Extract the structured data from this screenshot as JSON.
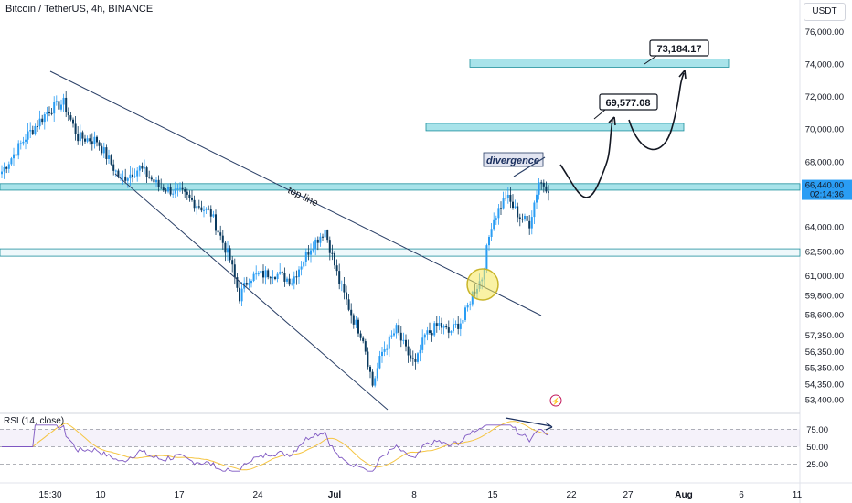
{
  "header": {
    "title": "Bitcoin / TetherUS, 4h, BINANCE",
    "currency": "USDT"
  },
  "colors": {
    "up": "#2a9df4",
    "down": "#0b3a5e",
    "zone_fill": "#a8e3ea",
    "zone_stroke": "#1b8e9c",
    "rsi_line": "#7e57c2",
    "rsi_ma": "#f5c542",
    "price_label_bg": "#2a9df4",
    "arrow": "#131722"
  },
  "chart_data": [
    {
      "type": "candlestick",
      "title": "Bitcoin / TetherUS, 4h, BINANCE",
      "x_ticks": [
        "15:30",
        "10",
        "17",
        "24",
        "Jul",
        "8",
        "15",
        "22",
        "27",
        "Aug",
        "6",
        "11"
      ],
      "y_ticks": [
        76000,
        74000,
        72000,
        70000,
        68000,
        66440,
        64000,
        62500,
        61000,
        59800,
        58600,
        57350,
        56350,
        55350,
        54350,
        53400
      ],
      "y_tick_labels": [
        "76,000.00",
        "74,000.00",
        "72,000.00",
        "70,000.00",
        "68,000.00",
        "64,000.00",
        "62,500.00",
        "61,000.00",
        "59,800.00",
        "58,600.00",
        "57,350.00",
        "56,350.00",
        "55,350.00",
        "54,350.00",
        "53,400.00"
      ],
      "current_price": "66,440.00",
      "countdown": "02:14:36",
      "path_keypoints": [
        {
          "i": 0,
          "p": 67400
        },
        {
          "i": 10,
          "p": 69500
        },
        {
          "i": 20,
          "p": 71200
        },
        {
          "i": 26,
          "p": 71600
        },
        {
          "i": 32,
          "p": 69500
        },
        {
          "i": 40,
          "p": 69300
        },
        {
          "i": 50,
          "p": 66900
        },
        {
          "i": 58,
          "p": 67600
        },
        {
          "i": 66,
          "p": 66500
        },
        {
          "i": 76,
          "p": 66000
        },
        {
          "i": 88,
          "p": 64800
        },
        {
          "i": 96,
          "p": 62000
        },
        {
          "i": 100,
          "p": 59700
        },
        {
          "i": 104,
          "p": 60900
        },
        {
          "i": 114,
          "p": 61200
        },
        {
          "i": 122,
          "p": 60700
        },
        {
          "i": 130,
          "p": 62800
        },
        {
          "i": 136,
          "p": 63800
        },
        {
          "i": 142,
          "p": 60600
        },
        {
          "i": 148,
          "p": 58300
        },
        {
          "i": 152,
          "p": 57200
        },
        {
          "i": 156,
          "p": 54300
        },
        {
          "i": 160,
          "p": 56300
        },
        {
          "i": 166,
          "p": 57700
        },
        {
          "i": 170,
          "p": 56400
        },
        {
          "i": 174,
          "p": 55500
        },
        {
          "i": 178,
          "p": 57300
        },
        {
          "i": 184,
          "p": 58000
        },
        {
          "i": 188,
          "p": 57500
        },
        {
          "i": 194,
          "p": 58300
        },
        {
          "i": 198,
          "p": 59900
        },
        {
          "i": 202,
          "p": 60900
        },
        {
          "i": 206,
          "p": 64200
        },
        {
          "i": 212,
          "p": 65900
        },
        {
          "i": 218,
          "p": 64600
        },
        {
          "i": 222,
          "p": 64200
        },
        {
          "i": 226,
          "p": 66800
        },
        {
          "i": 230,
          "p": 66400
        }
      ],
      "horizontal_levels": [
        {
          "label": "current_zone",
          "from": 66250,
          "to": 66650
        },
        {
          "label": "support_zone",
          "from": 62200,
          "to": 62650
        },
        {
          "label": "target_1",
          "from": 69900,
          "to": 70350,
          "price": "69,577.08"
        },
        {
          "label": "target_2",
          "from": 73800,
          "to": 74300,
          "price": "73,184.17"
        }
      ],
      "annotations": {
        "top_line": "top line",
        "divergence": "divergence",
        "target_1": "69,577.08",
        "target_2": "73,184.17"
      }
    },
    {
      "type": "line",
      "title": "RSI (14, close)",
      "series": [
        {
          "name": "RSI"
        },
        {
          "name": "RSI-based MA"
        }
      ],
      "y_ticks": [
        75,
        50,
        25
      ],
      "y_tick_labels": [
        "75.00",
        "50.00",
        "25.00"
      ],
      "band": [
        30,
        70
      ]
    }
  ]
}
